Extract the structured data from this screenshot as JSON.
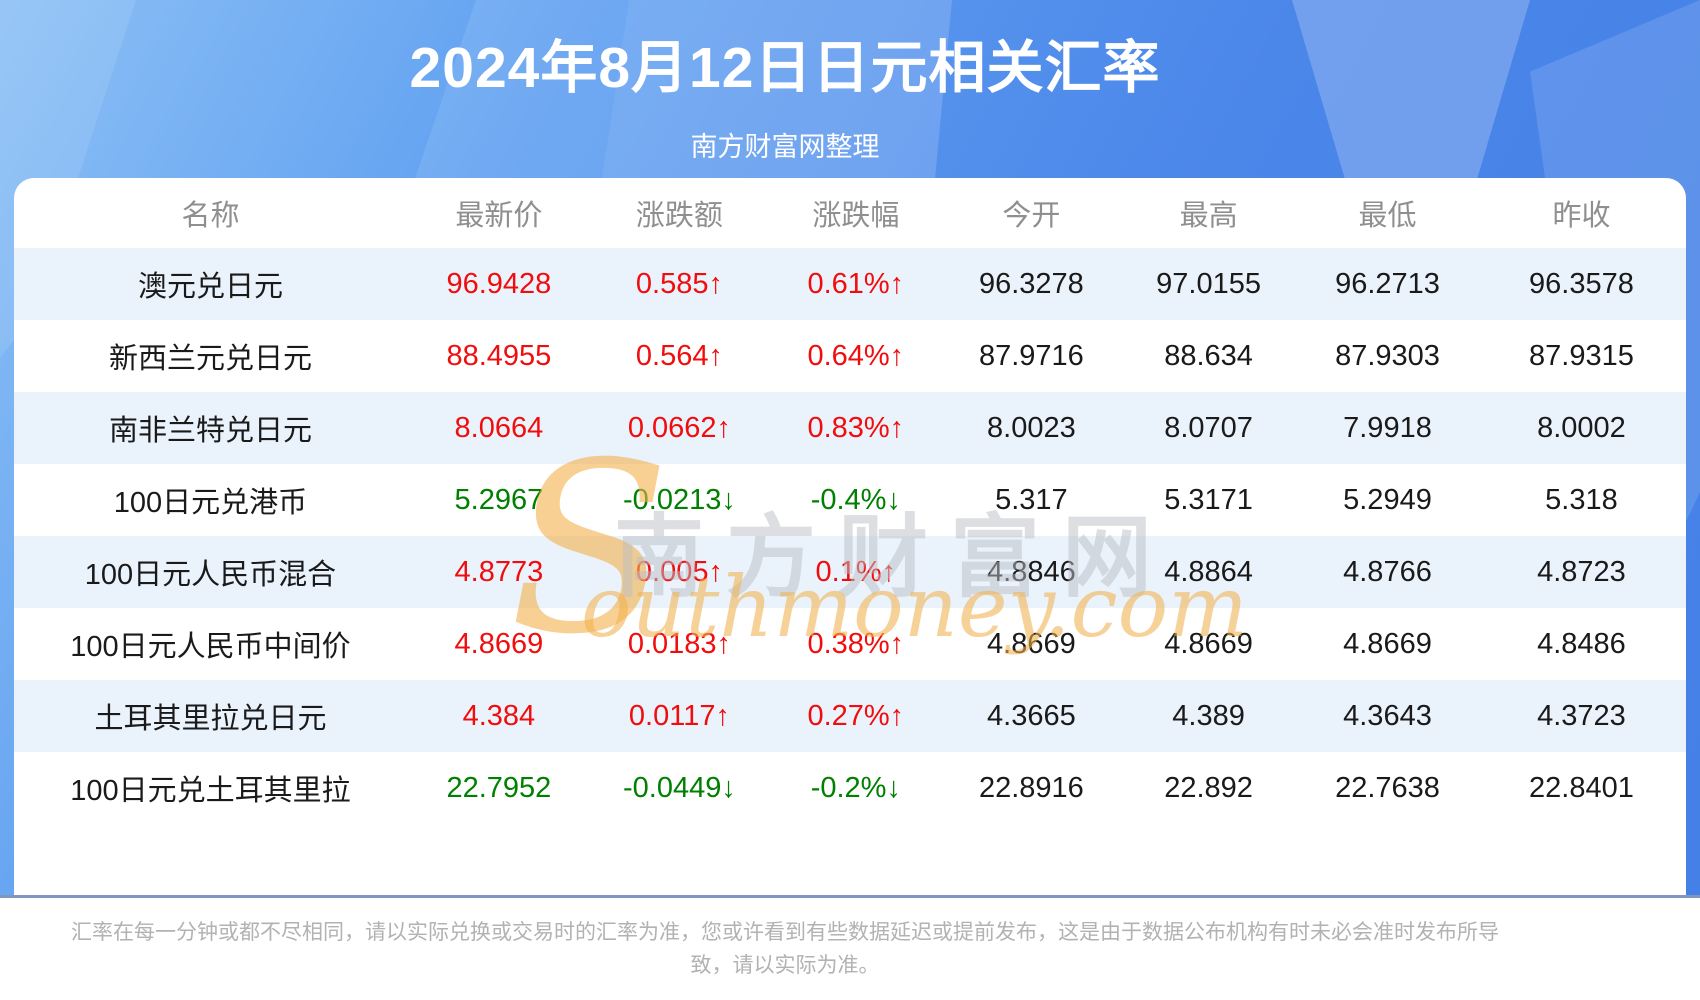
{
  "header": {
    "title": "2024年8月12日日元相关汇率",
    "subtitle": "南方财富网整理"
  },
  "table": {
    "columns": [
      "名称",
      "最新价",
      "涨跌额",
      "涨跌幅",
      "今开",
      "最高",
      "最低",
      "昨收"
    ],
    "rows": [
      {
        "name": "澳元兑日元",
        "latest": "96.9428",
        "change": "0.585↑",
        "change_pct": "0.61%↑",
        "open": "96.3278",
        "high": "97.0155",
        "low": "96.2713",
        "prev_close": "96.3578",
        "trend": "up"
      },
      {
        "name": "新西兰元兑日元",
        "latest": "88.4955",
        "change": "0.564↑",
        "change_pct": "0.64%↑",
        "open": "87.9716",
        "high": "88.634",
        "low": "87.9303",
        "prev_close": "87.9315",
        "trend": "up"
      },
      {
        "name": "南非兰特兑日元",
        "latest": "8.0664",
        "change": "0.0662↑",
        "change_pct": "0.83%↑",
        "open": "8.0023",
        "high": "8.0707",
        "low": "7.9918",
        "prev_close": "8.0002",
        "trend": "up"
      },
      {
        "name": "100日元兑港币",
        "latest": "5.2967",
        "change": "-0.0213↓",
        "change_pct": "-0.4%↓",
        "open": "5.317",
        "high": "5.3171",
        "low": "5.2949",
        "prev_close": "5.318",
        "trend": "down"
      },
      {
        "name": "100日元人民币混合",
        "latest": "4.8773",
        "change": "0.005↑",
        "change_pct": "0.1%↑",
        "open": "4.8846",
        "high": "4.8864",
        "low": "4.8766",
        "prev_close": "4.8723",
        "trend": "up"
      },
      {
        "name": "100日元人民币中间价",
        "latest": "4.8669",
        "change": "0.0183↑",
        "change_pct": "0.38%↑",
        "open": "4.8669",
        "high": "4.8669",
        "low": "4.8669",
        "prev_close": "4.8486",
        "trend": "up"
      },
      {
        "name": "土耳其里拉兑日元",
        "latest": "4.384",
        "change": "0.0117↑",
        "change_pct": "0.27%↑",
        "open": "4.3665",
        "high": "4.389",
        "low": "4.3643",
        "prev_close": "4.3723",
        "trend": "up"
      },
      {
        "name": "100日元兑土耳其里拉",
        "latest": "22.7952",
        "change": "-0.0449↓",
        "change_pct": "-0.2%↓",
        "open": "22.8916",
        "high": "22.892",
        "low": "22.7638",
        "prev_close": "22.8401",
        "trend": "down"
      }
    ]
  },
  "watermark": {
    "s": "S",
    "cn": "南方财富网",
    "en": "outhmoney.com"
  },
  "footer": {
    "disclaimer": "汇率在每一分钟或都不尽相同，请以实际兑换或交易时的汇率为准，您或许看到有些数据延迟或提前发布，这是由于数据公布机构有时未必会准时发布所导致，请以实际为准。"
  },
  "colors": {
    "up": "#f10d0d",
    "down": "#008000",
    "accent_blue": "#4b86e9"
  }
}
